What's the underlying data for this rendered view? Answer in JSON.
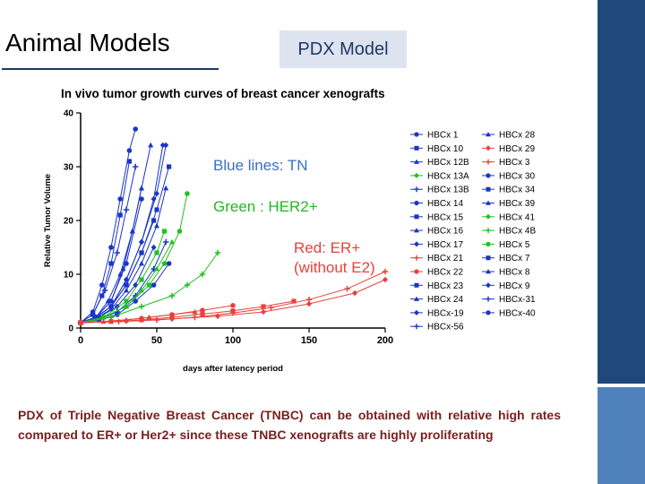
{
  "slide": {
    "title": "Animal Models",
    "badge": "PDX Model",
    "caption": "PDX of Triple Negative Breast Cancer (TNBC) can be obtained with relative high rates compared to ER+ or Her2+ since these TNBC xenografts are highly proliferating",
    "colors": {
      "dark_bar": "#1f497d",
      "accent_bar": "#4f81bd",
      "badge_bg": "#dde4f0",
      "caption_text": "#7a1e1e"
    }
  },
  "chart_data": {
    "type": "scatter",
    "title": "In vivo tumor growth curves of breast cancer xenografts",
    "xlabel": "days after latency period",
    "ylabel": "Relative Tumor Volume",
    "xlim": [
      0,
      200
    ],
    "ylim": [
      0,
      40
    ],
    "xticks": [
      "0",
      "50",
      "100",
      "150",
      "200"
    ],
    "yticks": [
      "0",
      "10",
      "20",
      "30",
      "40"
    ],
    "grid": false,
    "legend_position": "right",
    "annotations": [
      {
        "text": "Blue lines: TN",
        "color": "#3a6fc8"
      },
      {
        "text": "Green : HER2+",
        "color": "#22b822"
      },
      {
        "text": "Red: ER+",
        "color": "#e8403a"
      },
      {
        "text": "(without E2)",
        "color": "#e8403a"
      }
    ],
    "legend_col1": [
      "HBCx 1",
      "HBCx 10",
      "HBCx 12B",
      "HBCx 13A",
      "HBCx 13B",
      "HBCx 14",
      "HBCx 15",
      "HBCx 16",
      "HBCx 17",
      "HBCx 21",
      "HBCx 22",
      "HBCx 23",
      "HBCx 24",
      "HBCx-19",
      "HBCx-56"
    ],
    "legend_col2": [
      "HBCx 28",
      "HBCx 29",
      "HBCx 3",
      "HBCx 30",
      "HBCx 34",
      "HBCx 39",
      "HBCx 41",
      "HBCx 4B",
      "HBCx 5",
      "HBCx 7",
      "HBCx 8",
      "HBCx 9",
      "HBCx-31",
      "HBCx-40"
    ],
    "legend_col1_colors": [
      "#1a35c8",
      "#1a35c8",
      "#1a35c8",
      "#22c022",
      "#1a35c8",
      "#1a35c8",
      "#1a35c8",
      "#1a35c8",
      "#1a35c8",
      "#e8403a",
      "#e8403a",
      "#1a35c8",
      "#1a35c8",
      "#1a35c8",
      "#1a35c8"
    ],
    "legend_col2_colors": [
      "#1a35c8",
      "#e8403a",
      "#e8403a",
      "#1a35c8",
      "#1a35c8",
      "#1a35c8",
      "#22c022",
      "#22c022",
      "#22c022",
      "#1a35c8",
      "#1a35c8",
      "#1a35c8",
      "#1a35c8",
      "#1a35c8"
    ],
    "series": [
      {
        "group": "TN",
        "color": "#1a35c8",
        "x": [
          0,
          8,
          14,
          20,
          26,
          32,
          36
        ],
        "y": [
          1,
          3,
          8,
          15,
          24,
          33,
          37
        ]
      },
      {
        "group": "TN",
        "color": "#1a35c8",
        "x": [
          0,
          8,
          14,
          20,
          26,
          32
        ],
        "y": [
          1,
          2.5,
          6,
          12,
          21,
          31
        ]
      },
      {
        "group": "TN",
        "color": "#1a35c8",
        "x": [
          0,
          10,
          18,
          26,
          34,
          40,
          46
        ],
        "y": [
          1,
          2,
          5,
          10,
          18,
          26,
          34
        ]
      },
      {
        "group": "TN",
        "color": "#1a35c8",
        "x": [
          0,
          10,
          20,
          30,
          40,
          48,
          54
        ],
        "y": [
          1,
          2,
          4,
          9,
          16,
          24,
          34
        ]
      },
      {
        "group": "TN",
        "color": "#1a35c8",
        "x": [
          0,
          8,
          16,
          24,
          30,
          36
        ],
        "y": [
          1,
          2.5,
          7,
          14,
          22,
          30
        ]
      },
      {
        "group": "TN",
        "color": "#1a35c8",
        "x": [
          0,
          10,
          20,
          30,
          40
        ],
        "y": [
          1,
          2,
          5,
          12,
          24
        ]
      },
      {
        "group": "TN",
        "color": "#1a35c8",
        "x": [
          0,
          10,
          20,
          30,
          40,
          48
        ],
        "y": [
          1,
          2,
          4,
          8,
          14,
          20
        ]
      },
      {
        "group": "TN",
        "color": "#1a35c8",
        "x": [
          0,
          10,
          20,
          30,
          40,
          50,
          56
        ],
        "y": [
          1,
          1.8,
          3.5,
          7,
          12,
          19,
          26
        ]
      },
      {
        "group": "TN",
        "color": "#1a35c8",
        "x": [
          0,
          12,
          24,
          36,
          48
        ],
        "y": [
          1,
          2,
          4,
          8,
          15
        ]
      },
      {
        "group": "TN",
        "color": "#1a35c8",
        "x": [
          0,
          12,
          24,
          36,
          48,
          56
        ],
        "y": [
          1,
          1.6,
          3,
          6,
          11,
          16
        ]
      },
      {
        "group": "TN",
        "color": "#1a35c8",
        "x": [
          0,
          12,
          24,
          36,
          48,
          58
        ],
        "y": [
          1,
          1.5,
          2.5,
          5,
          8,
          12
        ]
      },
      {
        "group": "TN",
        "color": "#1a35c8",
        "x": [
          0,
          10,
          20,
          30,
          40,
          50,
          58
        ],
        "y": [
          1,
          2,
          4,
          8,
          14,
          22,
          30
        ]
      },
      {
        "group": "TN",
        "color": "#1a35c8",
        "x": [
          0,
          10,
          20,
          28,
          34,
          40
        ],
        "y": [
          1,
          2,
          5,
          11,
          18,
          26
        ]
      },
      {
        "group": "TN",
        "color": "#1a35c8",
        "x": [
          0,
          10,
          20,
          30,
          40,
          50,
          56
        ],
        "y": [
          1,
          2,
          4,
          9,
          16,
          25,
          34
        ]
      },
      {
        "group": "HER2+",
        "color": "#22c022",
        "x": [
          0,
          20,
          40,
          60,
          70,
          80,
          90
        ],
        "y": [
          1,
          2,
          4,
          6,
          8,
          10,
          14
        ]
      },
      {
        "group": "HER2+",
        "color": "#22c022",
        "x": [
          0,
          15,
          30,
          45,
          55,
          65,
          70
        ],
        "y": [
          1,
          2,
          4,
          8,
          12,
          18,
          25
        ]
      },
      {
        "group": "HER2+",
        "color": "#22c022",
        "x": [
          0,
          15,
          30,
          40,
          50,
          55
        ],
        "y": [
          1,
          2,
          5,
          9,
          14,
          18
        ]
      },
      {
        "group": "HER2+",
        "color": "#22c022",
        "x": [
          0,
          15,
          30,
          40,
          50,
          60
        ],
        "y": [
          1,
          2,
          4,
          7,
          11,
          16
        ]
      },
      {
        "group": "ER+",
        "color": "#e8403a",
        "x": [
          0,
          30,
          60,
          90,
          120,
          150,
          180,
          200
        ],
        "y": [
          1,
          1.3,
          1.7,
          2.2,
          3,
          4.5,
          6.5,
          9
        ]
      },
      {
        "group": "ER+",
        "color": "#e8403a",
        "x": [
          0,
          25,
          50,
          75,
          100,
          125,
          150,
          175,
          200
        ],
        "y": [
          1,
          1.2,
          1.5,
          2,
          2.8,
          3.8,
          5.3,
          7.3,
          10.5
        ]
      },
      {
        "group": "ER+",
        "color": "#e8403a",
        "x": [
          0,
          20,
          40,
          60,
          80,
          100
        ],
        "y": [
          1,
          1.3,
          1.8,
          2.5,
          3.3,
          4.2
        ]
      },
      {
        "group": "ER+",
        "color": "#e8403a",
        "x": [
          0,
          20,
          40,
          60,
          80,
          100,
          120,
          140
        ],
        "y": [
          1,
          1.2,
          1.5,
          2,
          2.6,
          3.2,
          4,
          5
        ]
      },
      {
        "group": "ER+",
        "color": "#e8403a",
        "x": [
          0,
          15,
          30,
          45,
          60,
          75
        ],
        "y": [
          1,
          1.2,
          1.5,
          2,
          2.5,
          3
        ]
      }
    ]
  }
}
